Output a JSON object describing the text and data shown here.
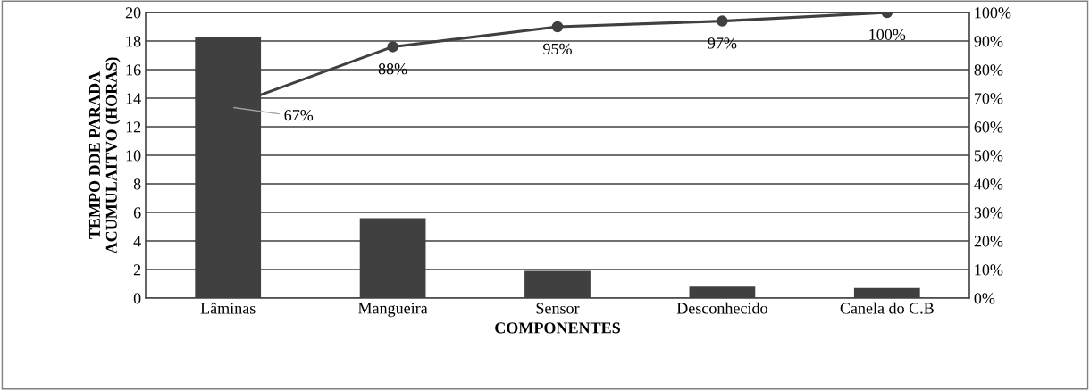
{
  "chart_data": {
    "type": "bar",
    "xlabel": "COMPONENTES",
    "ylabel": "TEMPO DDE PARADA\nACUMULAITVO (HORAS)",
    "categories": [
      "Lâminas",
      "Mangueira",
      "Sensor",
      "Desconhecido",
      "Canela do C.B"
    ],
    "series": [
      {
        "color": "#404040",
        "values": [
          18.3,
          5.6,
          1.9,
          0.8,
          0.7
        ]
      },
      {
        "type": "line",
        "axis": "y2",
        "color": "#404040",
        "marker": "circle",
        "values": [
          67,
          88,
          95,
          97,
          100
        ],
        "value_labels": [
          "67%",
          "88%",
          "95%",
          "97%",
          "100%"
        ]
      }
    ],
    "ylim": [
      0,
      20
    ],
    "yticks": [
      0,
      2,
      4,
      6,
      8,
      10,
      12,
      14,
      16,
      18,
      20
    ],
    "y2lim": [
      0,
      100
    ],
    "y2ticks": [
      {
        "value": 0,
        "label": "0%"
      },
      {
        "value": 10,
        "label": "10%"
      },
      {
        "value": 20,
        "label": "20%"
      },
      {
        "value": 30,
        "label": "30%"
      },
      {
        "value": 40,
        "label": "40%"
      },
      {
        "value": 50,
        "label": "50%"
      },
      {
        "value": 60,
        "label": "60%"
      },
      {
        "value": 70,
        "label": "70%"
      },
      {
        "value": 80,
        "label": "80%"
      },
      {
        "value": 90,
        "label": "90%"
      },
      {
        "value": 100,
        "label": "100%"
      }
    ],
    "grid": "y",
    "legend": false
  }
}
